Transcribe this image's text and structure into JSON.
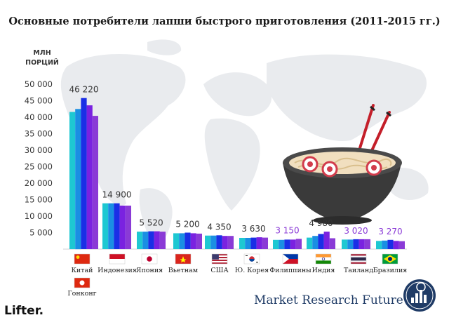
{
  "title": "Основные потребители лапши быстрого приготовления (2011-2015 гг.)",
  "brand": "Market Research Future",
  "logo": "Lifter.",
  "chart_data": {
    "type": "bar",
    "title": "Основные потребители лапши быстрого приготовления (2011-2015 гг.)",
    "ylabel": "МЛН ПОРЦИЙ",
    "ylim": [
      0,
      50000
    ],
    "yticks": [
      5000,
      10000,
      15000,
      20000,
      25000,
      30000,
      35000,
      40000,
      45000,
      50000
    ],
    "ytick_labels": [
      "5 000",
      "10 000",
      "15 000",
      "20 000",
      "25 000",
      "30 000",
      "35 000",
      "40 000",
      "45 000",
      "50 000"
    ],
    "grid": false,
    "years": [
      "2011",
      "2012",
      "2013",
      "2014",
      "2015"
    ],
    "colors": [
      "#1ec8d2",
      "#1a8fe3",
      "#1a2fe6",
      "#7a22e0",
      "#8a3ad6"
    ],
    "categories": [
      {
        "name": "Китай",
        "flag": "cn",
        "values": [
          41600,
          42500,
          45800,
          43600,
          40400
        ],
        "label": "46 220",
        "label_color": "#333333"
      },
      {
        "name": "Индонезия",
        "flag": "id",
        "values": [
          13900,
          13900,
          13900,
          13200,
          13200
        ],
        "label": "14 900",
        "label_color": "#333333"
      },
      {
        "name": "Япония",
        "flag": "jp",
        "values": [
          5300,
          5300,
          5400,
          5400,
          5300
        ],
        "label": "5 520",
        "label_color": "#333333"
      },
      {
        "name": "Вьетнам",
        "flag": "vn",
        "values": [
          4800,
          4800,
          5000,
          4800,
          4700
        ],
        "label": "5 200",
        "label_color": "#333333"
      },
      {
        "name": "США",
        "flag": "us",
        "values": [
          4100,
          4100,
          4200,
          4000,
          4000
        ],
        "label": "4 350",
        "label_color": "#333333"
      },
      {
        "name": "Ю. Корея",
        "flag": "kr",
        "values": [
          3400,
          3400,
          3500,
          3600,
          3500
        ],
        "label": "3 630",
        "label_color": "#333333"
      },
      {
        "name": "Филиппины",
        "flag": "ph",
        "values": [
          2800,
          2800,
          2900,
          2900,
          3100
        ],
        "label": "3 150",
        "label_color": "#8a3ad6"
      },
      {
        "name": "Индия",
        "flag": "in",
        "values": [
          3500,
          4000,
          4600,
          5300,
          3300
        ],
        "label": "4 980",
        "label_color": "#333333"
      },
      {
        "name": "Таиланд",
        "flag": "th",
        "values": [
          2900,
          2900,
          3000,
          3000,
          3000
        ],
        "label": "3 020",
        "label_color": "#8a3ad6"
      },
      {
        "name": "Бразилия",
        "flag": "br",
        "values": [
          2500,
          2600,
          2800,
          2500,
          2400
        ],
        "label": "3 270",
        "label_color": "#8a3ad6"
      },
      {
        "name": "Гонконг",
        "flag": "hk",
        "values": [],
        "label": "",
        "label_color": "#333333"
      }
    ]
  }
}
